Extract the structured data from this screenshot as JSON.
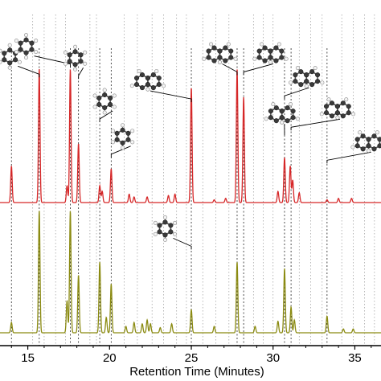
{
  "chart_data": {
    "type": "line",
    "title": "",
    "xlabel": "Retention Time (Minutes)",
    "ylabel": "",
    "xlim": [
      13.3,
      36.6
    ],
    "x_ticks": [
      15,
      20,
      25,
      30,
      35
    ],
    "grid": "vertical dotted lines at labelled peaks",
    "colors": {
      "series_top": "#d62728",
      "series_bottom": "#8b8b12",
      "leader": "#000000",
      "grid": "#9a9a9a"
    },
    "series": [
      {
        "color": "#d62728",
        "peaks": [
          {
            "x": 14.0,
            "h": 0.26
          },
          {
            "x": 15.7,
            "h": 0.95
          },
          {
            "x": 17.4,
            "h": 0.12
          },
          {
            "x": 17.6,
            "h": 0.95
          },
          {
            "x": 18.1,
            "h": 0.42
          },
          {
            "x": 19.4,
            "h": 0.12
          },
          {
            "x": 19.55,
            "h": 0.08
          },
          {
            "x": 20.1,
            "h": 0.24
          },
          {
            "x": 21.2,
            "h": 0.06
          },
          {
            "x": 21.5,
            "h": 0.04
          },
          {
            "x": 22.3,
            "h": 0.04
          },
          {
            "x": 23.6,
            "h": 0.05
          },
          {
            "x": 24.0,
            "h": 0.06
          },
          {
            "x": 25.0,
            "h": 0.82
          },
          {
            "x": 26.4,
            "h": 0.02
          },
          {
            "x": 27.1,
            "h": 0.03
          },
          {
            "x": 27.8,
            "h": 0.95
          },
          {
            "x": 28.2,
            "h": 0.75
          },
          {
            "x": 30.3,
            "h": 0.08
          },
          {
            "x": 30.7,
            "h": 0.32
          },
          {
            "x": 31.05,
            "h": 0.26
          },
          {
            "x": 31.2,
            "h": 0.16
          },
          {
            "x": 31.6,
            "h": 0.07
          },
          {
            "x": 33.3,
            "h": 0.02
          },
          {
            "x": 34.0,
            "h": 0.03
          },
          {
            "x": 34.8,
            "h": 0.03
          }
        ]
      },
      {
        "color": "#8b8b12",
        "peaks": [
          {
            "x": 14.0,
            "h": 0.08
          },
          {
            "x": 15.7,
            "h": 0.95
          },
          {
            "x": 17.4,
            "h": 0.25
          },
          {
            "x": 17.6,
            "h": 0.95
          },
          {
            "x": 18.1,
            "h": 0.45
          },
          {
            "x": 19.4,
            "h": 0.55
          },
          {
            "x": 19.8,
            "h": 0.12
          },
          {
            "x": 20.1,
            "h": 0.38
          },
          {
            "x": 21.0,
            "h": 0.05
          },
          {
            "x": 21.5,
            "h": 0.08
          },
          {
            "x": 22.0,
            "h": 0.07
          },
          {
            "x": 22.3,
            "h": 0.1
          },
          {
            "x": 22.5,
            "h": 0.07
          },
          {
            "x": 23.1,
            "h": 0.04
          },
          {
            "x": 23.8,
            "h": 0.07
          },
          {
            "x": 25.0,
            "h": 0.18
          },
          {
            "x": 26.4,
            "h": 0.05
          },
          {
            "x": 27.8,
            "h": 0.55
          },
          {
            "x": 28.9,
            "h": 0.05
          },
          {
            "x": 30.3,
            "h": 0.09
          },
          {
            "x": 30.7,
            "h": 0.5
          },
          {
            "x": 31.1,
            "h": 0.2
          },
          {
            "x": 31.3,
            "h": 0.1
          },
          {
            "x": 33.3,
            "h": 0.13
          },
          {
            "x": 34.3,
            "h": 0.03
          },
          {
            "x": 34.9,
            "h": 0.03
          }
        ]
      }
    ],
    "peak_markers": [
      14.0,
      15.7,
      17.6,
      18.1,
      19.4,
      20.1,
      25.0,
      27.8,
      28.2,
      30.7,
      31.1,
      33.3
    ],
    "grid_lines_x": [
      15.3,
      16.0,
      16.7,
      17.3,
      18.8,
      19.2,
      20.9,
      21.7,
      22.6,
      23.3,
      24.1,
      24.7,
      25.7,
      26.5,
      27.3,
      28.8,
      29.4,
      30.0,
      31.6,
      32.3,
      33.0,
      34.2,
      34.9,
      35.6,
      36.2
    ],
    "molecules": [
      {
        "icon": "methylbenzene-molecule-icon",
        "peak_x": 15.7,
        "mol_x": 13.9,
        "mol_y": 0.898,
        "atoms": 7
      },
      {
        "icon": "dimethylbenzene-molecule-icon",
        "peak_x": 17.6,
        "mol_x": 14.9,
        "mol_y": 0.93,
        "atoms": 8
      },
      {
        "icon": "dimethylbenzene-molecule-icon",
        "peak_x": 18.1,
        "mol_x": 17.9,
        "mol_y": 0.893,
        "atoms": 8
      },
      {
        "icon": "trimethylbenzene-molecule-icon",
        "peak_x": 19.4,
        "mol_x": 19.7,
        "mol_y": 0.757,
        "atoms": 9
      },
      {
        "icon": "trimethylbenzene-molecule-icon",
        "peak_x": 20.1,
        "mol_x": 20.8,
        "mol_y": 0.646,
        "atoms": 9
      },
      {
        "icon": "methylbenzene-molecule-icon",
        "peak_x": 25.0,
        "mol_x": 23.4,
        "mol_y": 0.356,
        "atoms": 7
      },
      {
        "icon": "naphthalene-molecule-icon",
        "peak_x": 25.0,
        "mol_x": 22.0,
        "mol_y": 0.82,
        "atoms": 10
      },
      {
        "icon": "naphthalene-molecule-icon",
        "peak_x": 27.8,
        "mol_x": 26.4,
        "mol_y": 0.905,
        "atoms": 10
      },
      {
        "icon": "methylnaphthalene-molecule-icon",
        "peak_x": 28.2,
        "mol_x": 29.5,
        "mol_y": 0.905,
        "atoms": 11
      },
      {
        "icon": "methylnaphthalene-molecule-icon",
        "peak_x": 30.7,
        "mol_x": 31.7,
        "mol_y": 0.83,
        "atoms": 11
      },
      {
        "icon": "dimethylnaphthalene-molecule-icon",
        "peak_x": 30.7,
        "mol_x": 30.2,
        "mol_y": 0.716,
        "atoms": 12
      },
      {
        "icon": "dimethylnaphthalene-molecule-icon",
        "peak_x": 31.1,
        "mol_x": 33.6,
        "mol_y": 0.731,
        "atoms": 12
      },
      {
        "icon": "trimethylnaphthalene-molecule-icon",
        "peak_x": 33.3,
        "mol_x": 35.5,
        "mol_y": 0.627,
        "atoms": 13
      }
    ]
  }
}
